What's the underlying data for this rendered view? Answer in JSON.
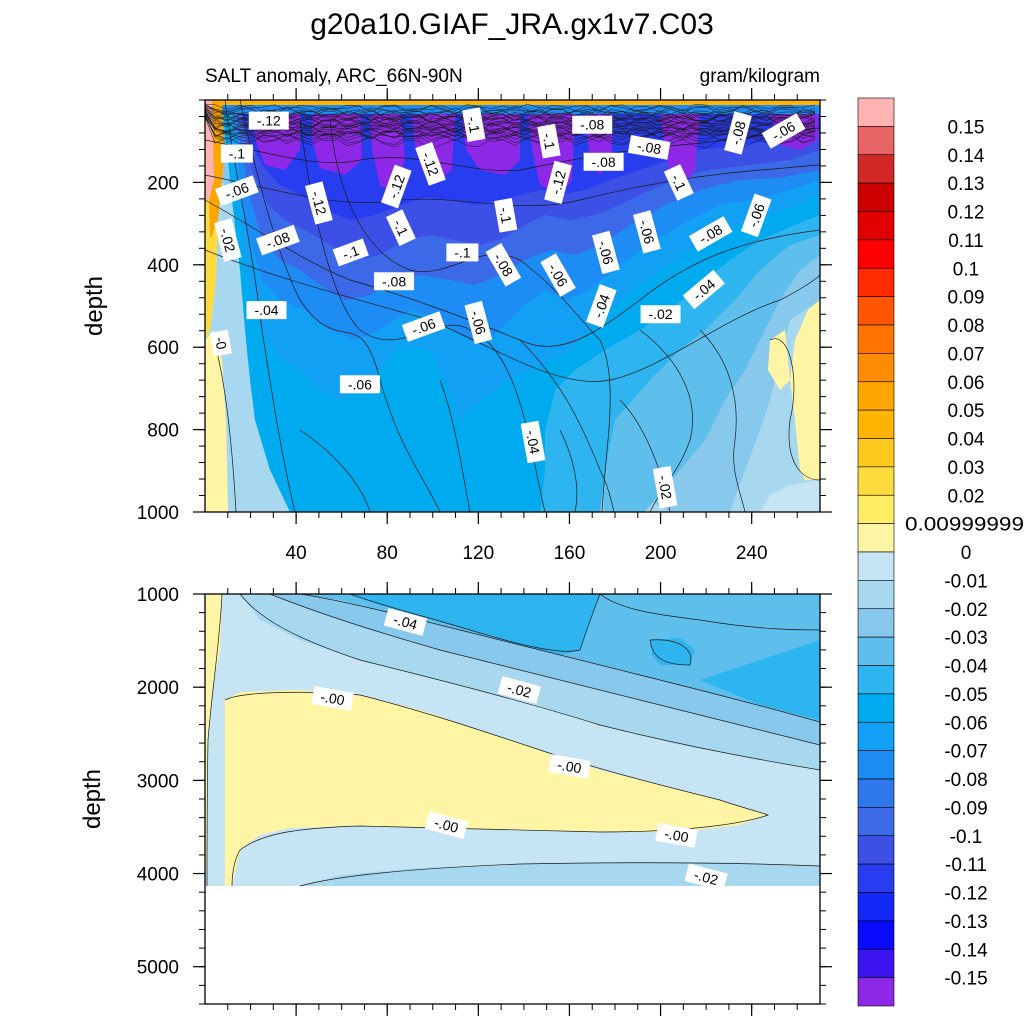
{
  "chart_data": {
    "type": "contour",
    "title": "g20a10.GIAF_JRA.gx1v7.C03",
    "variable_label": "SALT anomaly, ARC_66N-90N",
    "units_label": "gram/kilogram",
    "x_ticks": [
      "40",
      "80",
      "120",
      "160",
      "200",
      "240"
    ],
    "panels": [
      {
        "name": "upper",
        "ylabel": "depth",
        "ylim": [
          0,
          1000
        ],
        "xlim": [
          0,
          270
        ],
        "y_ticks": [
          "200",
          "400",
          "600",
          "800",
          "1000"
        ],
        "contour_labels": [
          {
            "text": "-.12",
            "x": 28,
            "y": 50
          },
          {
            "text": "-.1",
            "x": 14,
            "y": 130
          },
          {
            "text": "-.06",
            "x": 14,
            "y": 220
          },
          {
            "text": "-.02",
            "x": 10,
            "y": 340
          },
          {
            "text": "-0",
            "x": 7,
            "y": 590
          },
          {
            "text": "-.04",
            "x": 27,
            "y": 510
          },
          {
            "text": "-.08",
            "x": 32,
            "y": 340
          },
          {
            "text": "-.12",
            "x": 50,
            "y": 250
          },
          {
            "text": "-.1",
            "x": 64,
            "y": 370
          },
          {
            "text": "-.12",
            "x": 84,
            "y": 210
          },
          {
            "text": "-.1",
            "x": 86,
            "y": 310
          },
          {
            "text": "-.08",
            "x": 83,
            "y": 440
          },
          {
            "text": "-.06",
            "x": 96,
            "y": 550
          },
          {
            "text": "-.12",
            "x": 99,
            "y": 155
          },
          {
            "text": "-.1",
            "x": 113,
            "y": 370
          },
          {
            "text": "-.1",
            "x": 118,
            "y": 60
          },
          {
            "text": "-.06",
            "x": 120,
            "y": 540
          },
          {
            "text": "-.1",
            "x": 132,
            "y": 280
          },
          {
            "text": "-.08",
            "x": 131,
            "y": 400
          },
          {
            "text": "-.06",
            "x": 68,
            "y": 690
          },
          {
            "text": "-.1",
            "x": 151,
            "y": 100
          },
          {
            "text": "-.12",
            "x": 155,
            "y": 200
          },
          {
            "text": "-.06",
            "x": 155,
            "y": 425
          },
          {
            "text": "-.08",
            "x": 170,
            "y": 60
          },
          {
            "text": "-.08",
            "x": 175,
            "y": 150
          },
          {
            "text": "-.06",
            "x": 176,
            "y": 370
          },
          {
            "text": "-.04",
            "x": 174,
            "y": 500
          },
          {
            "text": "-.08",
            "x": 195,
            "y": 115
          },
          {
            "text": "-.06",
            "x": 194,
            "y": 320
          },
          {
            "text": "-.02",
            "x": 200,
            "y": 520
          },
          {
            "text": "-.1",
            "x": 208,
            "y": 200
          },
          {
            "text": "-.08",
            "x": 222,
            "y": 325
          },
          {
            "text": "-.04",
            "x": 219,
            "y": 460
          },
          {
            "text": "-.08",
            "x": 234,
            "y": 80
          },
          {
            "text": "-.06",
            "x": 242,
            "y": 280
          },
          {
            "text": "-.06",
            "x": 254,
            "y": 75
          },
          {
            "text": "-.04",
            "x": 144,
            "y": 830
          },
          {
            "text": "-.02",
            "x": 202,
            "y": 940
          }
        ]
      },
      {
        "name": "lower",
        "ylabel": "depth",
        "ylim": [
          1000,
          5400
        ],
        "xlim": [
          0,
          270
        ],
        "y_ticks": [
          "1000",
          "2000",
          "3000",
          "4000",
          "5000"
        ],
        "bottom_depth": 4120,
        "contour_labels": [
          {
            "text": "-.04",
            "x": 88,
            "y": 1300
          },
          {
            "text": "-.00",
            "x": 56,
            "y": 2120
          },
          {
            "text": "-.02",
            "x": 138,
            "y": 2030
          },
          {
            "text": "-.00",
            "x": 160,
            "y": 2850
          },
          {
            "text": "-.00",
            "x": 106,
            "y": 3480
          },
          {
            "text": "-.00",
            "x": 207,
            "y": 3590
          },
          {
            "text": "-.02",
            "x": 220,
            "y": 4040
          }
        ]
      }
    ],
    "colorbar": {
      "labels": [
        "0.15",
        "0.14",
        "0.13",
        "0.12",
        "0.11",
        "0.1",
        "0.09",
        "0.08",
        "0.07",
        "0.06",
        "0.05",
        "0.04",
        "0.03",
        "0.02",
        "0.00999999",
        "0",
        "-0.01",
        "-0.02",
        "-0.03",
        "-0.04",
        "-0.05",
        "-0.06",
        "-0.07",
        "-0.08",
        "-0.09",
        "-0.1",
        "-0.11",
        "-0.12",
        "-0.13",
        "-0.14",
        "-0.15"
      ],
      "colors": [
        "#ffb3b3",
        "#e86464",
        "#d42828",
        "#cc0000",
        "#e00000",
        "#ff0000",
        "#ff2a00",
        "#ff5500",
        "#ff7400",
        "#ff8c00",
        "#ffa500",
        "#ffb400",
        "#ffc81e",
        "#ffdc3c",
        "#ffee64",
        "#fff5a5",
        "#c5e4f4",
        "#a7d8f0",
        "#88c8ec",
        "#5ebeec",
        "#2eb4ee",
        "#00aaee",
        "#12a0f5",
        "#1e8cf5",
        "#2e78ee",
        "#3c69e8",
        "#3c50e6",
        "#283cf0",
        "#1428f8",
        "#0a0aff",
        "#3c14f0",
        "#8c28e6"
      ]
    }
  }
}
